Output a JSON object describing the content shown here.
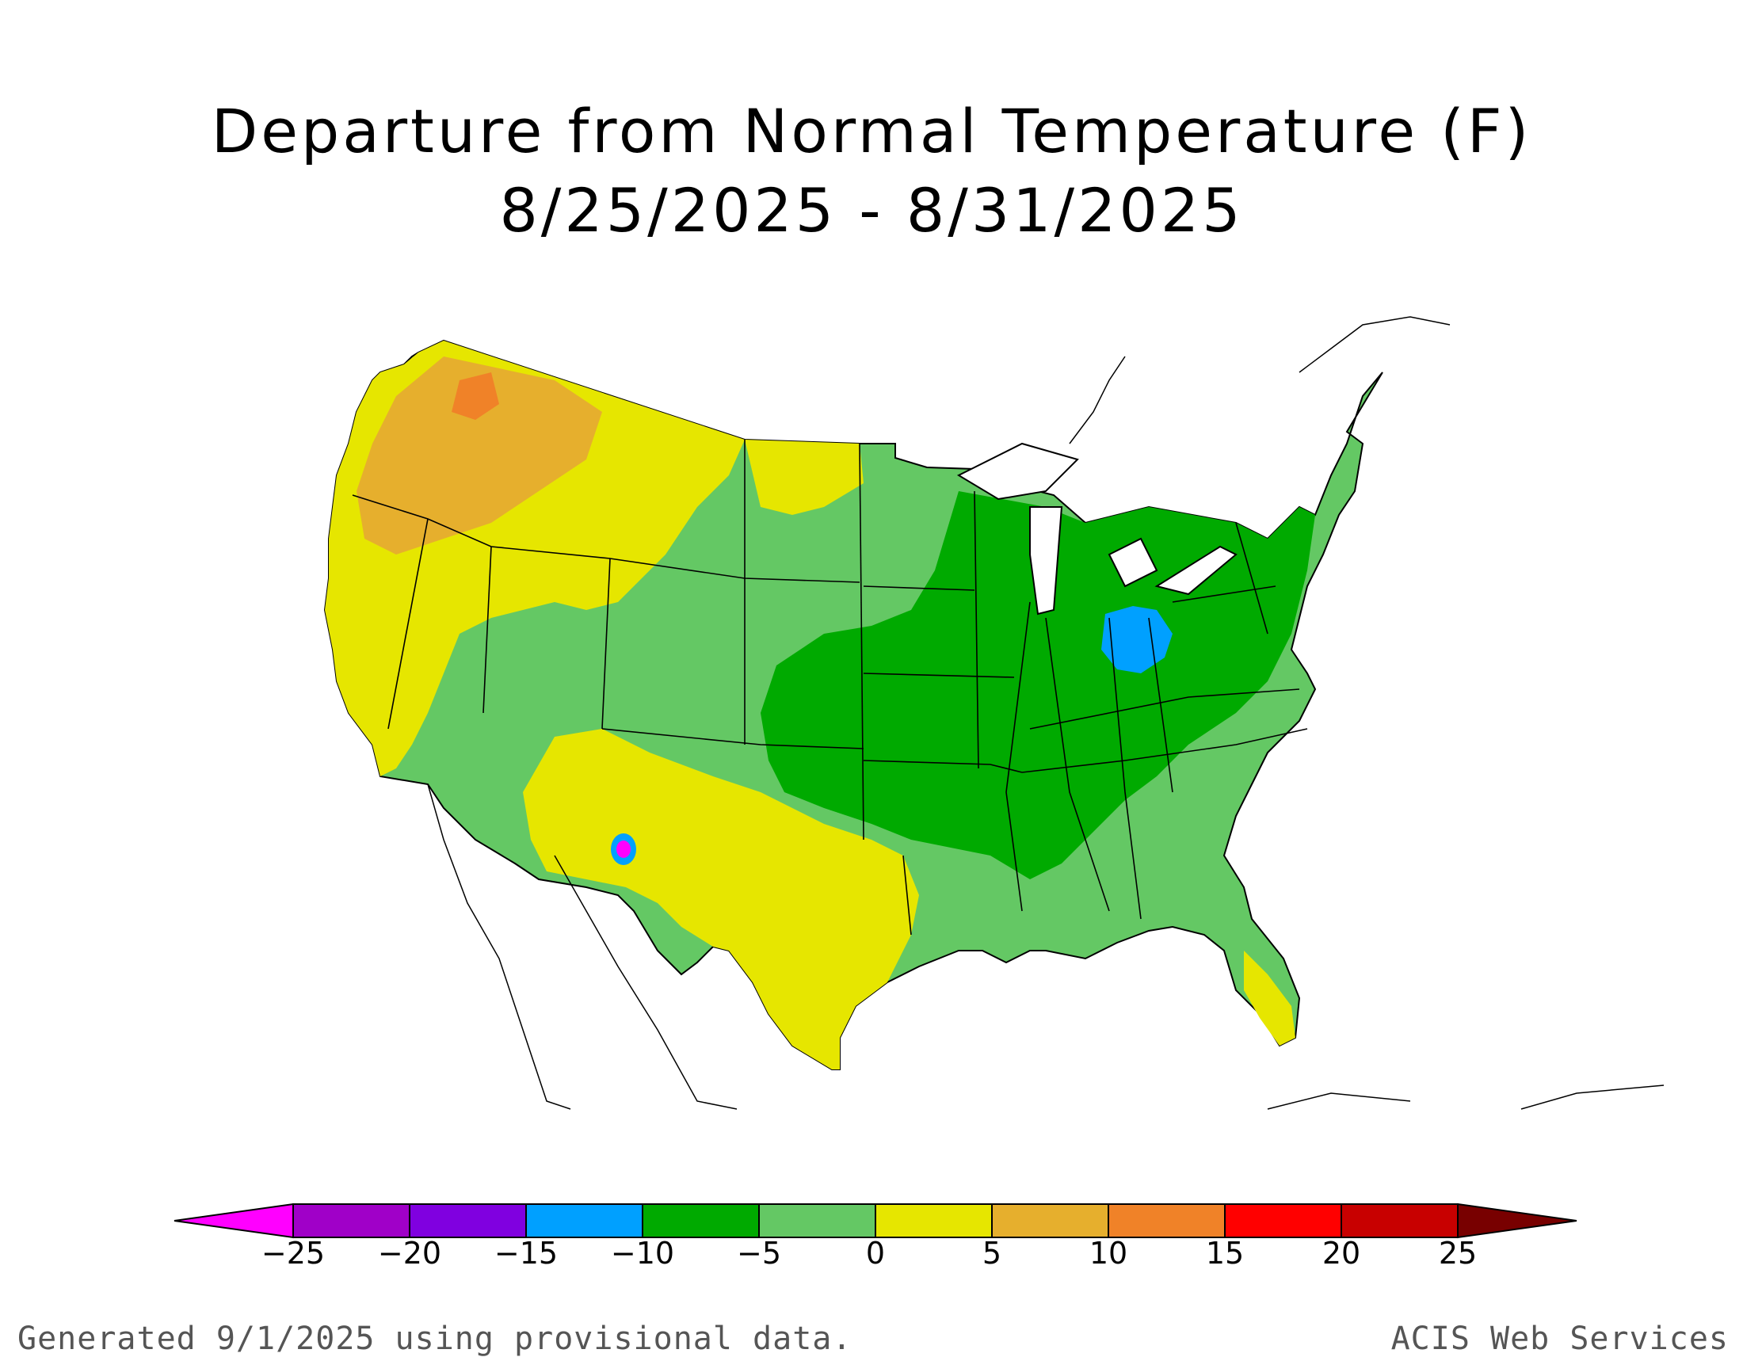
{
  "title_line1": "Departure from Normal Temperature (F)",
  "title_line2": "8/25/2025 - 8/31/2025",
  "legend": {
    "ticks": [
      "−25",
      "−20",
      "−15",
      "−10",
      "−5",
      "0",
      "5",
      "10",
      "15",
      "20",
      "25"
    ],
    "bins": [
      {
        "range": "< -25",
        "color": "#ff00ff"
      },
      {
        "range": "-25 to -20",
        "color": "#a000c8"
      },
      {
        "range": "-20 to -15",
        "color": "#8000e0"
      },
      {
        "range": "-15 to -10",
        "color": "#00a0ff"
      },
      {
        "range": "-10 to -5",
        "color": "#00aa00"
      },
      {
        "range": "-5 to 0",
        "color": "#64c864"
      },
      {
        "range": "0 to 5",
        "color": "#e6e600"
      },
      {
        "range": "5 to 10",
        "color": "#e6af2d"
      },
      {
        "range": "10 to 15",
        "color": "#f08228"
      },
      {
        "range": "15 to 20",
        "color": "#ff0000"
      },
      {
        "range": "20 to 25",
        "color": "#c80000"
      },
      {
        "range": "> 25",
        "color": "#780000"
      }
    ]
  },
  "footer_left": "Generated 9/1/2025 using provisional data.",
  "footer_right": "ACIS Web Services"
}
